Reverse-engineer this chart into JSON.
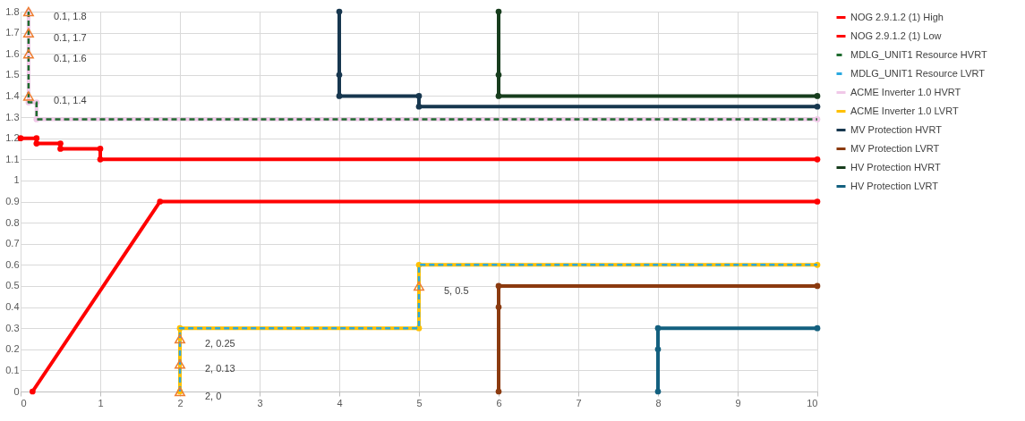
{
  "chart_data": {
    "type": "line",
    "xlim": [
      0,
      10
    ],
    "ylim": [
      0,
      1.8
    ],
    "xticks": [
      0,
      1,
      2,
      3,
      4,
      5,
      6,
      7,
      8,
      9,
      10
    ],
    "yticks": [
      0,
      0.1,
      0.2,
      0.3,
      0.4,
      0.5,
      0.6,
      0.7,
      0.8,
      0.9,
      1,
      1.1,
      1.2,
      1.3,
      1.4,
      1.5,
      1.6,
      1.7,
      1.8
    ],
    "grid": true,
    "legend": "right",
    "marker": "circle",
    "line_style": "solid",
    "series": [
      {
        "name": "NOG 2.9.1.2 (1) High",
        "color": "#ff0000",
        "x": [
          0,
          0.2,
          0.2,
          0.5,
          0.5,
          1,
          1,
          10
        ],
        "values": [
          1.2,
          1.2,
          1.175,
          1.175,
          1.15,
          1.15,
          1.1,
          1.1
        ]
      },
      {
        "name": "NOG 2.9.1.2 (1) Low",
        "color": "#ff0000",
        "x": [
          0.15,
          1.75,
          10
        ],
        "values": [
          0,
          0.9,
          0.9
        ]
      },
      {
        "name": "MDLG_UNIT1 Resource HVRT",
        "color": "#1e6b2e",
        "line_style": "dashed",
        "marker": "none",
        "x": [
          0.1,
          0.1,
          0.2,
          0.2,
          10
        ],
        "values": [
          1.8,
          1.37,
          1.37,
          1.29,
          1.29
        ]
      },
      {
        "name": "MDLG_UNIT1 Resource LVRT",
        "color": "#29a8e0",
        "line_style": "dashed",
        "marker": "none",
        "x": [
          2,
          2,
          5,
          5,
          10
        ],
        "values": [
          0,
          0.3,
          0.3,
          0.6,
          0.6
        ]
      },
      {
        "name": "ACME Inverter 1.0  HVRT",
        "color": "#f0c8e8",
        "x": [
          0.1,
          0.1,
          0.2,
          0.2,
          10
        ],
        "values": [
          1.8,
          1.37,
          1.37,
          1.29,
          1.29
        ]
      },
      {
        "name": "ACME Inverter 1.0  LVRT",
        "color": "#ffc000",
        "x": [
          2,
          2,
          5,
          5,
          10
        ],
        "values": [
          0,
          0.3,
          0.3,
          0.6,
          0.6
        ]
      },
      {
        "name": "MV Protection  HVRT",
        "color": "#17374f",
        "x": [
          4,
          4,
          4,
          5,
          5,
          10
        ],
        "values": [
          1.8,
          1.5,
          1.4,
          1.4,
          1.35,
          1.35
        ]
      },
      {
        "name": "MV Protection  LVRT",
        "color": "#8b3a0f",
        "x": [
          6,
          6,
          6,
          10
        ],
        "values": [
          0,
          0.4,
          0.5,
          0.5
        ]
      },
      {
        "name": "HV Protection  HVRT",
        "color": "#173d1d",
        "x": [
          6,
          6,
          6,
          10
        ],
        "values": [
          1.8,
          1.5,
          1.4,
          1.4
        ]
      },
      {
        "name": "HV Protection  LVRT",
        "color": "#13607f",
        "x": [
          8,
          8,
          8,
          10
        ],
        "values": [
          0,
          0.2,
          0.3,
          0.3
        ]
      }
    ],
    "annotations": [
      {
        "text": "0.1, 1.8",
        "x": 0.1,
        "y": 1.8
      },
      {
        "text": "0.1, 1.7",
        "x": 0.1,
        "y": 1.7
      },
      {
        "text": "0.1, 1.6",
        "x": 0.1,
        "y": 1.6
      },
      {
        "text": "0.1, 1.4",
        "x": 0.1,
        "y": 1.4
      },
      {
        "text": "2, 0.25",
        "x": 2,
        "y": 0.25
      },
      {
        "text": "2, 0.13",
        "x": 2,
        "y": 0.13
      },
      {
        "text": "2, 0",
        "x": 2,
        "y": 0
      },
      {
        "text": "5, 0.5",
        "x": 5,
        "y": 0.5
      }
    ]
  }
}
